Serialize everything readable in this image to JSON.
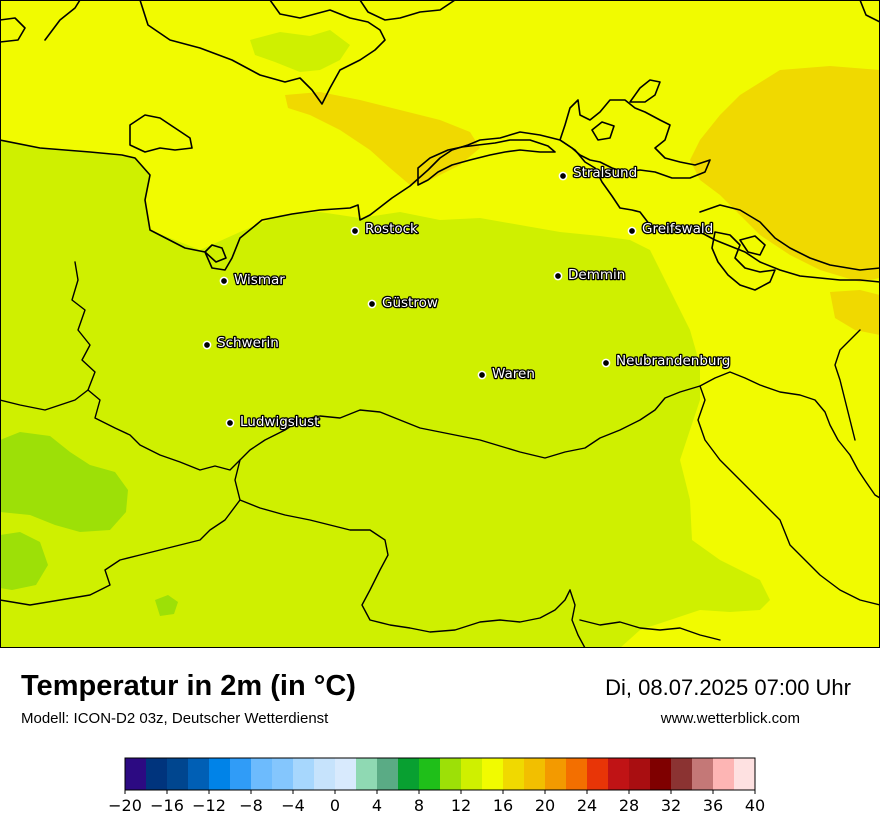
{
  "map": {
    "title": "Temperatur in 2m (in °C)",
    "model": "Modell: ICON-D2 03z, Deutscher Wetterdienst",
    "datetime": "Di, 08.07.2025 07:00 Uhr",
    "website": "www.wetterblick.com",
    "cities": [
      {
        "name": "Stralsund"
      },
      {
        "name": "Rostock"
      },
      {
        "name": "Greifswald"
      },
      {
        "name": "Wismar"
      },
      {
        "name": "Demmin"
      },
      {
        "name": "Güstrow"
      },
      {
        "name": "Schwerin"
      },
      {
        "name": "Neubrandenburg"
      },
      {
        "name": "Waren"
      },
      {
        "name": "Ludwigslust"
      }
    ]
  },
  "legend": {
    "unit": "°C",
    "ticks": [
      "−20",
      "−16",
      "−12",
      "−8",
      "−4",
      "0",
      "4",
      "8",
      "12",
      "16",
      "20",
      "24",
      "28",
      "32",
      "36",
      "40"
    ],
    "colors": [
      "#2c0a82",
      "#00347d",
      "#00468f",
      "#005fb5",
      "#0083e8",
      "#309cf7",
      "#6dbbfd",
      "#84c6fd",
      "#a7d7fd",
      "#c6e3fc",
      "#d8eafd",
      "#8fd9b3",
      "#5aab85",
      "#08a031",
      "#1fbf19",
      "#9de007",
      "#cff000",
      "#f1fb00",
      "#f0d900",
      "#f2bf00",
      "#f39a00",
      "#f36f00",
      "#e83507",
      "#c01315",
      "#a90e11",
      "#7f0000",
      "#8b3332",
      "#c47877",
      "#fdb5b4",
      "#fee1e1"
    ]
  }
}
